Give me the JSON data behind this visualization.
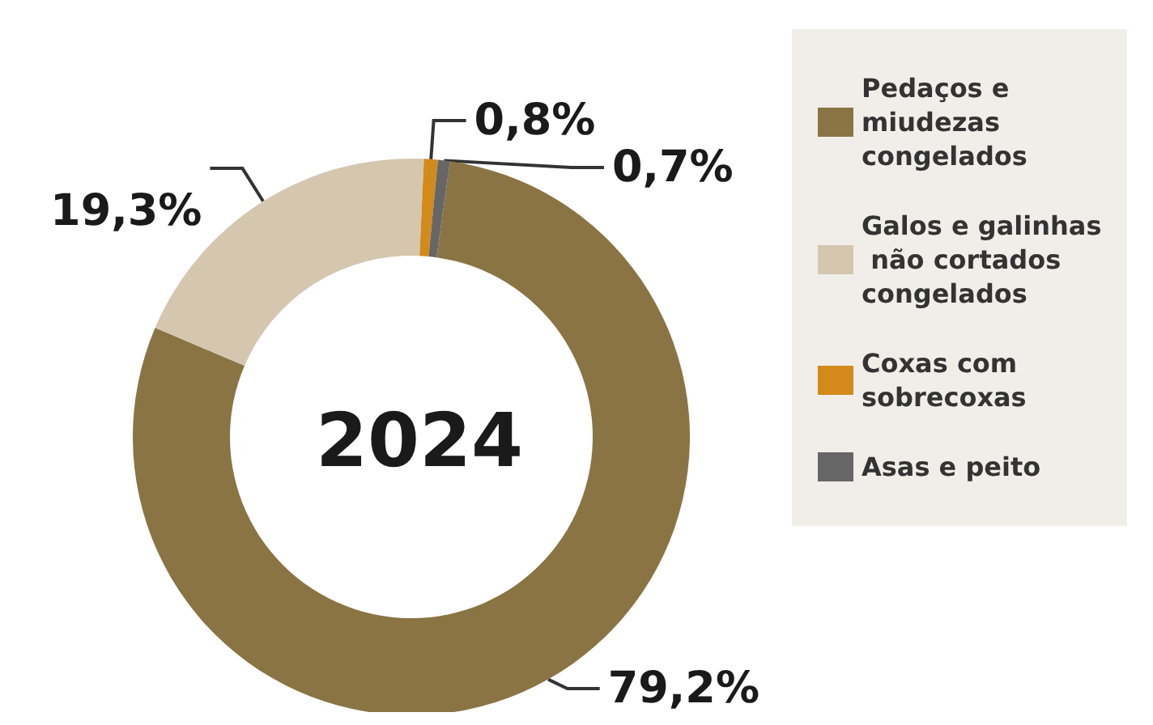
{
  "chart_data": {
    "type": "donut",
    "title": "2024",
    "categories": [
      "Pedaços e miudezas congelados",
      "Galos e galinhas não cortados congelados",
      "Coxas com sobrecoxas",
      "Asas e peito"
    ],
    "values": [
      79.2,
      19.3,
      0.8,
      0.7
    ],
    "value_labels": [
      "79,2%",
      "19,3%",
      "0,8%",
      "0,7%"
    ],
    "colors": [
      "#8a7444",
      "#d5c6b0",
      "#d28a1a",
      "#666666"
    ],
    "legend": "right"
  }
}
